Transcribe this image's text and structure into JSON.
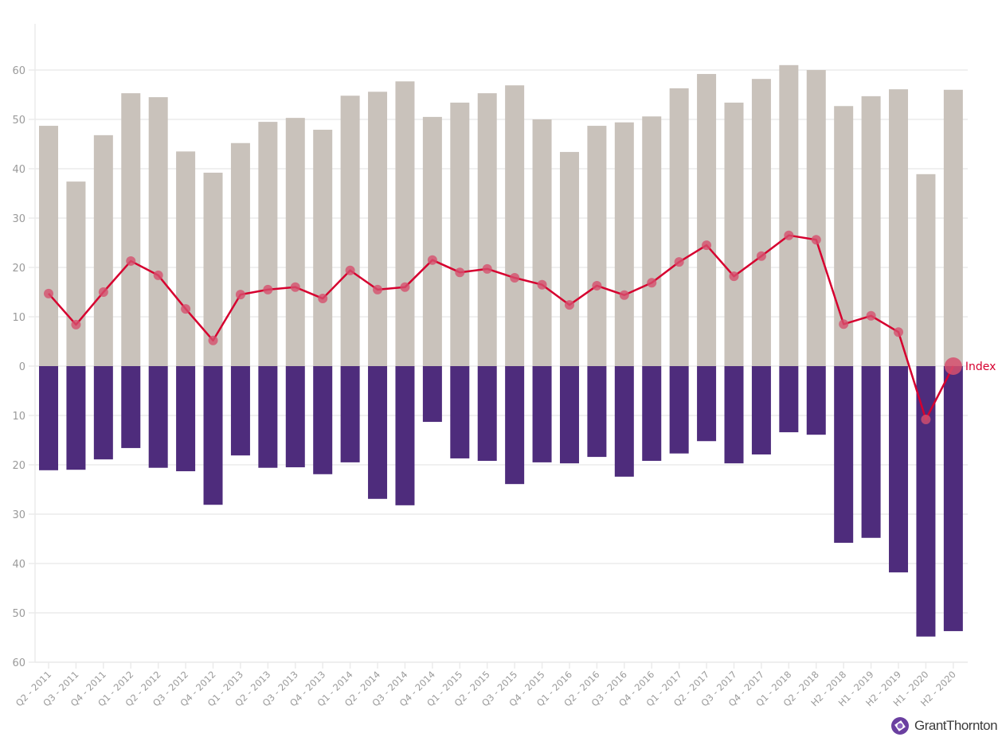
{
  "chart_data": {
    "type": "bar",
    "title": "",
    "xlabel": "",
    "ylabel": "",
    "ylim": [
      -60,
      60
    ],
    "y_ticks": [
      60,
      50,
      40,
      30,
      20,
      10,
      0,
      10,
      20,
      30,
      40,
      50,
      60
    ],
    "grid": true,
    "categories": [
      "Q2 - 2011",
      "Q3 - 2011",
      "Q4 - 2011",
      "Q1 - 2012",
      "Q2 - 2012",
      "Q3 - 2012",
      "Q4 - 2012",
      "Q1 - 2013",
      "Q2 - 2013",
      "Q3 - 2013",
      "Q4 - 2013",
      "Q1 - 2014",
      "Q2 - 2014",
      "Q3 - 2014",
      "Q4 - 2014",
      "Q1 - 2015",
      "Q2 - 2015",
      "Q3 - 2015",
      "Q4 - 2015",
      "Q1 - 2016",
      "Q2 - 2016",
      "Q3 - 2016",
      "Q4 - 2016",
      "Q1 - 2017",
      "Q2 - 2017",
      "Q3 - 2017",
      "Q4 - 2017",
      "Q1 - 2018",
      "Q2 - 2018",
      "H2 - 2018",
      "H1 - 2019",
      "H2 - 2019",
      "H1 - 2020",
      "H2 - 2020"
    ],
    "series": [
      {
        "type": "bar",
        "color": "#c9c2bb",
        "values": [
          48.7,
          37.4,
          46.8,
          55.3,
          54.5,
          43.5,
          39.2,
          45.2,
          49.5,
          50.3,
          47.9,
          54.8,
          55.6,
          57.7,
          50.5,
          53.4,
          55.3,
          56.9,
          50.0,
          43.4,
          48.7,
          49.4,
          50.6,
          56.3,
          59.2,
          53.4,
          58.2,
          61.0,
          60.0,
          52.7,
          54.7,
          56.1,
          38.9,
          56.0
        ]
      },
      {
        "type": "bar",
        "color": "#4e2c7c",
        "values": [
          -21.1,
          -21.0,
          -18.9,
          -16.6,
          -20.6,
          -21.3,
          -28.1,
          -18.1,
          -20.6,
          -20.5,
          -21.9,
          -19.5,
          -26.9,
          -28.2,
          -11.3,
          -18.7,
          -19.2,
          -23.9,
          -19.5,
          -19.7,
          -18.4,
          -22.4,
          -19.2,
          -17.7,
          -15.2,
          -19.7,
          -17.9,
          -13.4,
          -13.9,
          -35.8,
          -34.8,
          -41.8,
          -54.8,
          -53.7
        ]
      },
      {
        "type": "line",
        "name": "Index",
        "color": "#d6002f",
        "values": [
          14.7,
          8.4,
          15.0,
          21.3,
          18.4,
          11.6,
          5.2,
          14.5,
          15.5,
          16.0,
          13.7,
          19.4,
          15.5,
          16.0,
          21.5,
          19.0,
          19.7,
          17.9,
          16.5,
          12.4,
          16.3,
          14.4,
          16.9,
          21.1,
          24.5,
          18.2,
          22.3,
          26.5,
          25.6,
          8.5,
          10.2,
          6.9,
          -10.8,
          0.0
        ]
      }
    ]
  },
  "logo": {
    "text": "GrantThornton",
    "color": "#6a3fa0"
  }
}
